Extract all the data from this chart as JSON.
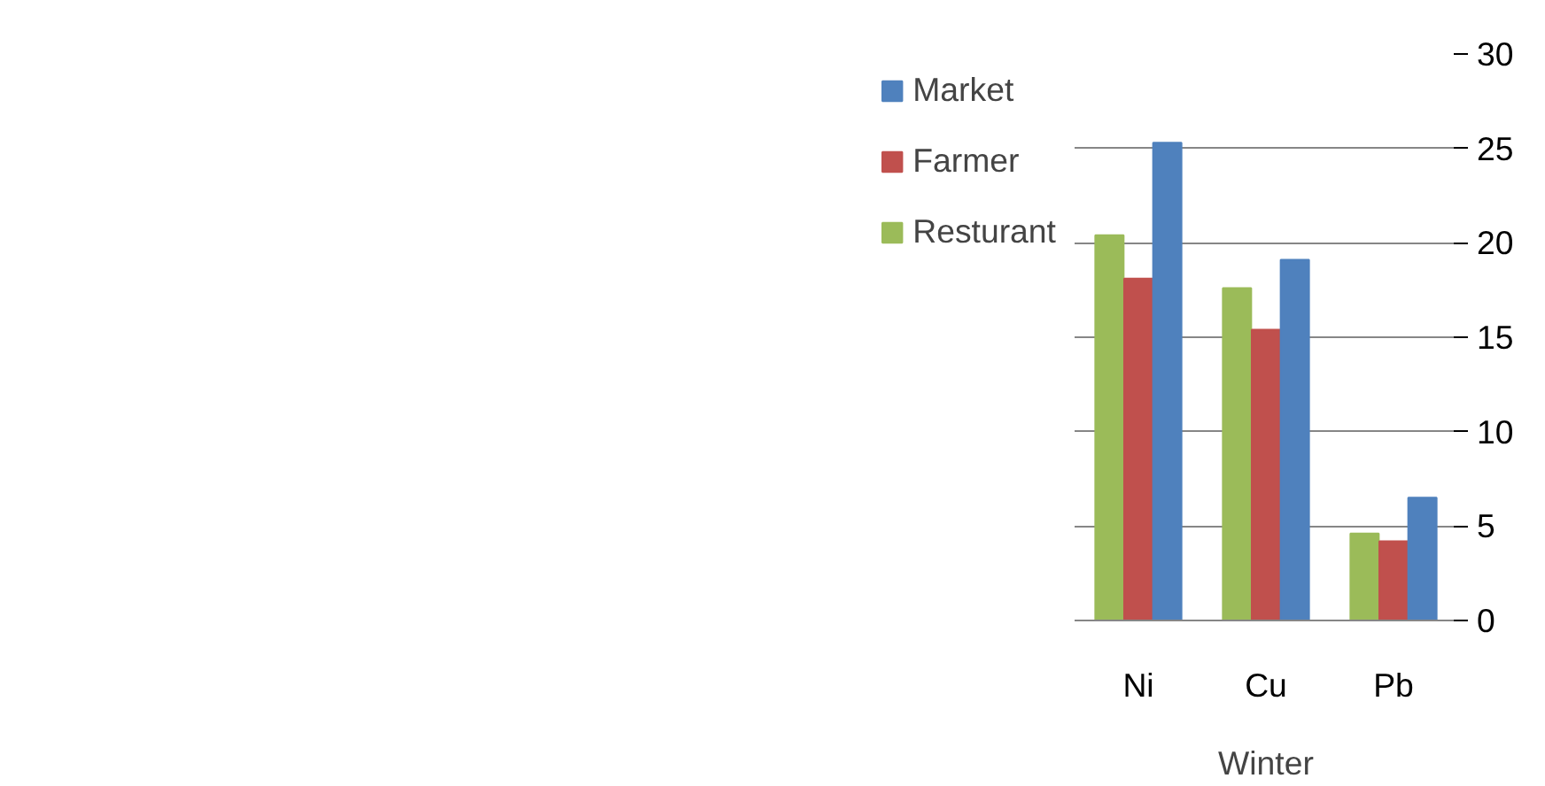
{
  "chart_data": {
    "type": "bar",
    "categories": [
      "Ni",
      "Cu",
      "Pb"
    ],
    "xlabel": "Winter",
    "series": [
      {
        "name": "Resturant",
        "color": "#9bbb59",
        "values": [
          20.4,
          17.6,
          4.6
        ]
      },
      {
        "name": "Farmer",
        "color": "#c0504d",
        "values": [
          18.1,
          15.4,
          4.2
        ]
      },
      {
        "name": "Market",
        "color": "#4f81bd",
        "values": [
          25.3,
          19.1,
          6.5
        ]
      }
    ],
    "ylim": [
      0,
      30
    ],
    "yticks": [
      0,
      5,
      10,
      15,
      20,
      25,
      30
    ],
    "grid": "y",
    "legend": "left"
  }
}
